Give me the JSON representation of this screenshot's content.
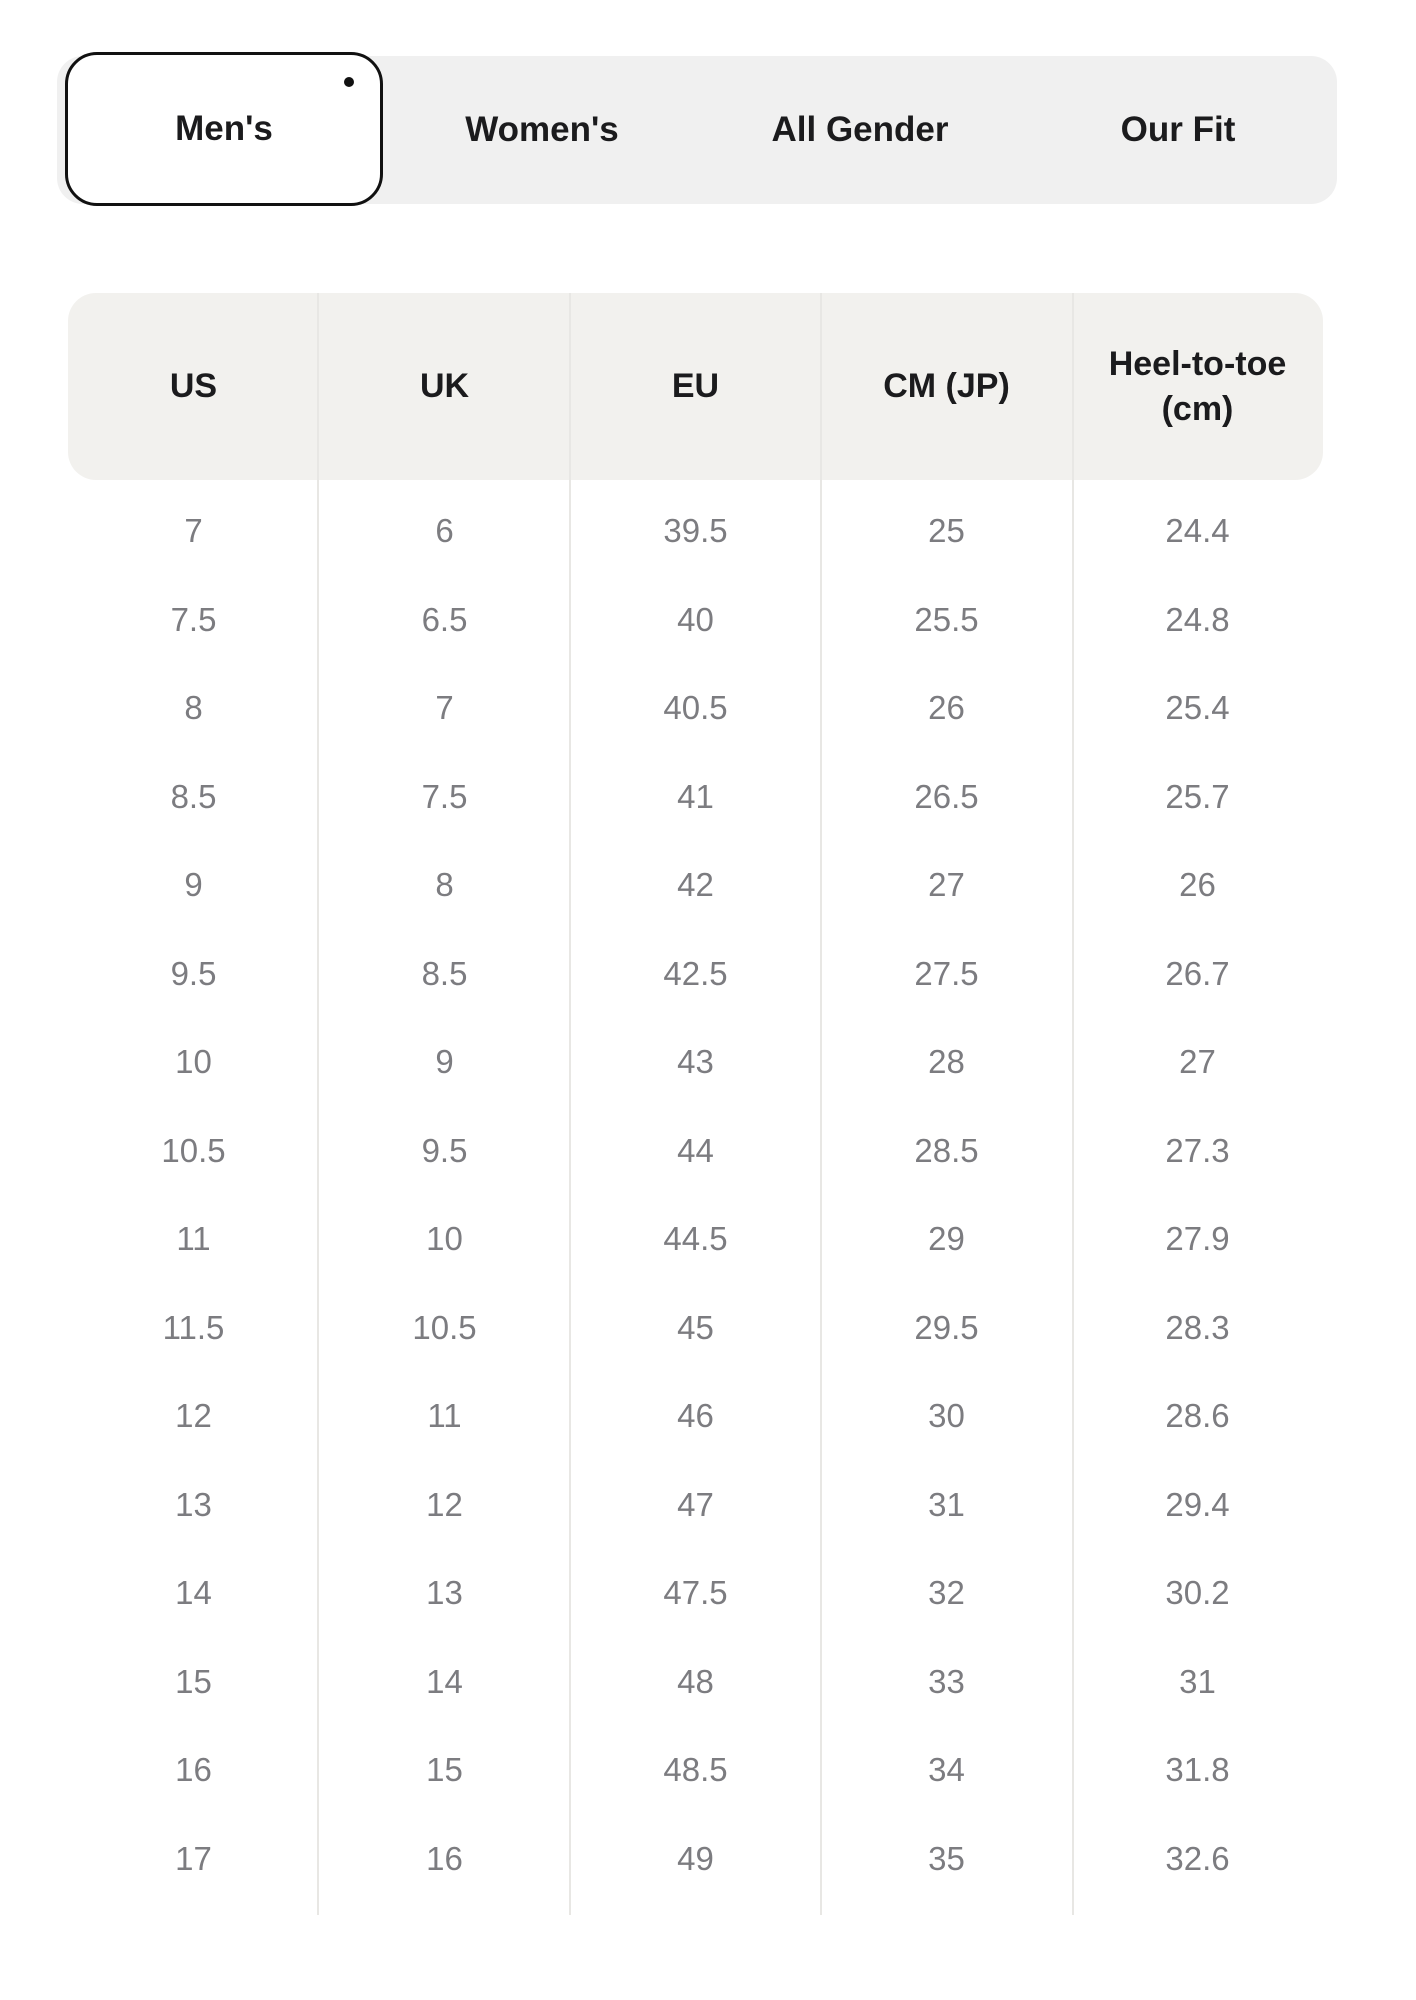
{
  "tabs": {
    "items": [
      {
        "label": "Men's",
        "active": true
      },
      {
        "label": "Women's",
        "active": false
      },
      {
        "label": "All Gender",
        "active": false
      },
      {
        "label": "Our Fit",
        "active": false
      }
    ]
  },
  "size_chart": {
    "columns": [
      "US",
      "UK",
      "EU",
      "CM (JP)",
      "Heel-to-toe (cm)"
    ],
    "rows": [
      [
        "7",
        "6",
        "39.5",
        "25",
        "24.4"
      ],
      [
        "7.5",
        "6.5",
        "40",
        "25.5",
        "24.8"
      ],
      [
        "8",
        "7",
        "40.5",
        "26",
        "25.4"
      ],
      [
        "8.5",
        "7.5",
        "41",
        "26.5",
        "25.7"
      ],
      [
        "9",
        "8",
        "42",
        "27",
        "26"
      ],
      [
        "9.5",
        "8.5",
        "42.5",
        "27.5",
        "26.7"
      ],
      [
        "10",
        "9",
        "43",
        "28",
        "27"
      ],
      [
        "10.5",
        "9.5",
        "44",
        "28.5",
        "27.3"
      ],
      [
        "11",
        "10",
        "44.5",
        "29",
        "27.9"
      ],
      [
        "11.5",
        "10.5",
        "45",
        "29.5",
        "28.3"
      ],
      [
        "12",
        "11",
        "46",
        "30",
        "28.6"
      ],
      [
        "13",
        "12",
        "47",
        "31",
        "29.4"
      ],
      [
        "14",
        "13",
        "47.5",
        "32",
        "30.2"
      ],
      [
        "15",
        "14",
        "48",
        "33",
        "31"
      ],
      [
        "16",
        "15",
        "48.5",
        "34",
        "31.8"
      ],
      [
        "17",
        "16",
        "49",
        "35",
        "32.6"
      ]
    ]
  },
  "colors": {
    "active_tab_border": "#111111",
    "active_tab_bg": "#ffffff",
    "tab_bar_bg": "#f0f0f0",
    "header_bg": "#f2f1ee",
    "divider": "#e8e7e4",
    "heading_text": "#1b1b1d",
    "body_text": "#7c7c80"
  }
}
